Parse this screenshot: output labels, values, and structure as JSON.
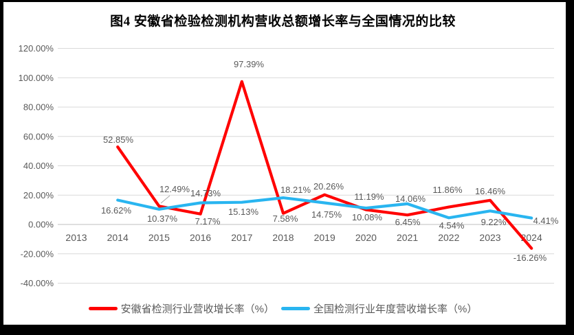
{
  "title": "图4 安徽省检验检测机构营收总额增长率与全国情况的比较",
  "chart_data": {
    "type": "line",
    "title": "图4 安徽省检验检测机构营收总额增长率与全国情况的比较",
    "x": [
      "2013",
      "2014",
      "2015",
      "2016",
      "2017",
      "2018",
      "2019",
      "2020",
      "2021",
      "2022",
      "2023",
      "2024"
    ],
    "series": [
      {
        "name": "安徽省检测行业营收增长率（%）",
        "color": "#FF0000",
        "values": [
          null,
          52.85,
          12.49,
          7.17,
          97.39,
          7.58,
          20.26,
          10.08,
          6.45,
          11.86,
          16.46,
          -16.26
        ],
        "labels": [
          "",
          "52.85%",
          "12.49%",
          "7.17%",
          "97.39%",
          "7.58%",
          "20.26%",
          "10.08%",
          "6.45%",
          "11.86%",
          "16.46%",
          "-16.26%"
        ]
      },
      {
        "name": "全国检测行业年度营收增长率（%）",
        "color": "#29B5F0",
        "values": [
          null,
          16.62,
          10.37,
          14.73,
          15.13,
          18.21,
          14.75,
          11.19,
          14.06,
          4.54,
          9.22,
          4.41
        ],
        "labels": [
          "",
          "16.62%",
          "10.37%",
          "14.73%",
          "15.13%",
          "18.21%",
          "14.75%",
          "11.19%",
          "14.06%",
          "4.54%",
          "9.22%",
          "4.41%"
        ]
      }
    ],
    "y_axis": {
      "min": -40,
      "max": 120,
      "step": 20,
      "format": "0.00%"
    },
    "y_tick_labels": [
      "120.00%",
      "100.00%",
      "80.00%",
      "60.00%",
      "40.00%",
      "20.00%",
      "0.00%",
      "-20.00%",
      "-40.00%"
    ],
    "grid": true,
    "data_labels": true,
    "legend_position": "bottom"
  },
  "colors": {
    "series_red": "#FF0000",
    "series_blue": "#29B5F0",
    "gridline": "#D9D9D9",
    "axis_line": "#BFBFBF",
    "tick_label": "#595959",
    "data_label": "#595959",
    "leader_line": "#A6A6A6",
    "frame": "#000000",
    "background": "#FFFFFF"
  }
}
